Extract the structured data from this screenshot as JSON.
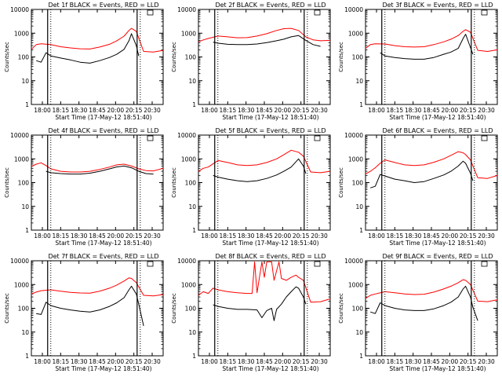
{
  "figure": {
    "panel_count": 9,
    "colors": {
      "black_series": "#000000",
      "red_series": "#ff0000",
      "marker_lines": "#000000"
    }
  },
  "chart_data": [
    {
      "type": "line",
      "title": "Det 1f BLACK = Events, RED = LLD",
      "xlabel": "Start Time (17-May-12 18:51:40)",
      "ylabel": "Counts/sec",
      "xlim": [
        17.8,
        20.5
      ],
      "ylim": [
        1,
        10000
      ],
      "yscale": "log",
      "xticks": [
        "18:00",
        "18:15",
        "18:30",
        "18:45",
        "20:00",
        "20:15",
        "20:30"
      ],
      "yticks": [
        "1",
        "10",
        "100",
        "1000",
        "10000"
      ],
      "vlines_time": [
        "18:08",
        "19:58"
      ],
      "series": [
        {
          "name": "Events",
          "color": "#000000",
          "x": [
            17.9,
            18.0,
            18.1,
            18.2,
            18.4,
            18.6,
            18.8,
            19.0,
            19.2,
            19.4,
            19.55,
            19.7,
            19.8,
            19.85,
            19.95,
            20.0
          ],
          "y": [
            70,
            60,
            150,
            110,
            90,
            75,
            60,
            55,
            70,
            95,
            130,
            210,
            480,
            950,
            300,
            110
          ]
        },
        {
          "name": "LLD",
          "color": "#ff0000",
          "x": [
            17.8,
            17.9,
            18.0,
            18.2,
            18.4,
            18.6,
            18.8,
            19.0,
            19.2,
            19.4,
            19.55,
            19.7,
            19.8,
            19.85,
            19.95,
            20.1,
            20.3,
            20.5
          ],
          "y": [
            210,
            330,
            360,
            330,
            270,
            240,
            220,
            215,
            260,
            340,
            480,
            750,
            1300,
            1600,
            1200,
            170,
            160,
            190
          ]
        }
      ]
    },
    {
      "type": "line",
      "title": "Det 2f BLACK = Events, RED = LLD",
      "xlabel": "Start Time (17-May-12 18:51:40)",
      "ylabel": "Counts/sec",
      "xlim": [
        17.8,
        20.5
      ],
      "ylim": [
        1,
        10000
      ],
      "yscale": "log",
      "xticks": [
        "18:00",
        "18:15",
        "18:30",
        "18:45",
        "20:00",
        "20:15",
        "20:30"
      ],
      "yticks": [
        "1",
        "10",
        "100",
        "1000",
        "10000"
      ],
      "vlines_time": [
        "18:08",
        "19:58"
      ],
      "series": [
        {
          "name": "Events",
          "color": "#000000",
          "x": [
            18.1,
            18.2,
            18.4,
            18.6,
            18.8,
            19.0,
            19.2,
            19.4,
            19.55,
            19.7,
            19.85,
            20.0,
            20.15,
            20.3
          ],
          "y": [
            420,
            380,
            340,
            330,
            330,
            350,
            400,
            480,
            560,
            700,
            800,
            500,
            330,
            280
          ]
        },
        {
          "name": "LLD",
          "color": "#ff0000",
          "x": [
            17.8,
            17.9,
            18.0,
            18.2,
            18.4,
            18.6,
            18.8,
            19.0,
            19.2,
            19.4,
            19.55,
            19.7,
            19.85,
            20.0,
            20.15,
            20.3,
            20.5
          ],
          "y": [
            430,
            520,
            600,
            760,
            700,
            640,
            650,
            760,
            950,
            1300,
            1550,
            1600,
            1300,
            700,
            520,
            480,
            500
          ]
        }
      ]
    },
    {
      "type": "line",
      "title": "Det 3f BLACK = Events, RED = LLD",
      "xlabel": "Start Time (17-May-12 18:51:40)",
      "ylabel": "Counts/sec",
      "xlim": [
        17.8,
        20.5
      ],
      "ylim": [
        1,
        10000
      ],
      "yscale": "log",
      "xticks": [
        "18:00",
        "18:15",
        "18:30",
        "18:45",
        "20:00",
        "20:15",
        "20:30"
      ],
      "yticks": [
        "1",
        "10",
        "100",
        "1000",
        "10000"
      ],
      "vlines_time": [
        "18:08",
        "19:58"
      ],
      "series": [
        {
          "name": "Events",
          "color": "#000000",
          "x": [
            18.1,
            18.2,
            18.4,
            18.6,
            18.8,
            19.0,
            19.2,
            19.4,
            19.55,
            19.7,
            19.8,
            19.85,
            19.95,
            20.0
          ],
          "y": [
            150,
            110,
            95,
            85,
            80,
            80,
            95,
            130,
            160,
            230,
            600,
            900,
            250,
            130
          ]
        },
        {
          "name": "LLD",
          "color": "#ff0000",
          "x": [
            17.8,
            17.9,
            18.0,
            18.2,
            18.4,
            18.6,
            18.8,
            19.0,
            19.2,
            19.4,
            19.55,
            19.7,
            19.8,
            19.85,
            19.95,
            20.1,
            20.3,
            20.5
          ],
          "y": [
            230,
            330,
            360,
            350,
            300,
            270,
            260,
            270,
            330,
            430,
            560,
            800,
            1200,
            1400,
            1100,
            190,
            170,
            200
          ]
        }
      ]
    },
    {
      "type": "line",
      "title": "Det 4f BLACK = Events, RED = LLD",
      "xlabel": "Start Time (17-May-12 18:51:40)",
      "ylabel": "Counts/sec",
      "xlim": [
        17.8,
        20.5
      ],
      "ylim": [
        1,
        10000
      ],
      "yscale": "log",
      "xticks": [
        "18:00",
        "18:15",
        "18:30",
        "18:45",
        "20:00",
        "20:15",
        "20:30"
      ],
      "yticks": [
        "1",
        "10",
        "100",
        "1000",
        "10000"
      ],
      "vlines_time": [
        "18:08",
        "19:58"
      ],
      "series": [
        {
          "name": "Events",
          "color": "#000000",
          "x": [
            18.1,
            18.2,
            18.4,
            18.6,
            18.8,
            19.0,
            19.2,
            19.4,
            19.55,
            19.7,
            19.85,
            20.0,
            20.15,
            20.3
          ],
          "y": [
            300,
            260,
            240,
            230,
            230,
            250,
            300,
            380,
            460,
            500,
            420,
            300,
            240,
            230
          ]
        },
        {
          "name": "LLD",
          "color": "#ff0000",
          "x": [
            17.8,
            17.9,
            18.0,
            18.1,
            18.2,
            18.4,
            18.6,
            18.8,
            19.0,
            19.2,
            19.4,
            19.55,
            19.7,
            19.85,
            20.0,
            20.15,
            20.3,
            20.5
          ],
          "y": [
            480,
            600,
            680,
            520,
            380,
            300,
            280,
            280,
            300,
            360,
            450,
            560,
            600,
            500,
            380,
            320,
            310,
            400
          ]
        }
      ]
    },
    {
      "type": "line",
      "title": "Det 5f BLACK = Events, RED = LLD",
      "xlabel": "Start Time (17-May-12 18:51:40)",
      "ylabel": "Counts/sec",
      "xlim": [
        17.8,
        20.5
      ],
      "ylim": [
        1,
        10000
      ],
      "yscale": "log",
      "xticks": [
        "18:00",
        "18:15",
        "18:30",
        "18:45",
        "20:00",
        "20:15",
        "20:30"
      ],
      "yticks": [
        "1",
        "10",
        "100",
        "1000",
        "10000"
      ],
      "vlines_time": [
        "18:08",
        "19:58"
      ],
      "series": [
        {
          "name": "Events",
          "color": "#000000",
          "x": [
            18.1,
            18.2,
            18.4,
            18.6,
            18.8,
            19.0,
            19.2,
            19.4,
            19.55,
            19.7,
            19.85,
            19.95,
            20.0
          ],
          "y": [
            200,
            170,
            140,
            120,
            110,
            120,
            150,
            210,
            300,
            450,
            1000,
            500,
            240
          ]
        },
        {
          "name": "LLD",
          "color": "#ff0000",
          "x": [
            17.8,
            17.9,
            18.0,
            18.2,
            18.4,
            18.6,
            18.8,
            19.0,
            19.2,
            19.4,
            19.55,
            19.7,
            19.85,
            19.95,
            20.1,
            20.3,
            20.5
          ],
          "y": [
            300,
            400,
            450,
            850,
            700,
            560,
            520,
            560,
            700,
            1000,
            1500,
            2300,
            1900,
            1300,
            280,
            260,
            300
          ]
        }
      ]
    },
    {
      "type": "line",
      "title": "Det 6f BLACK = Events, RED = LLD",
      "xlabel": "Start Time (17-May-12 18:51:40)",
      "ylabel": "Counts/sec",
      "xlim": [
        17.8,
        20.5
      ],
      "ylim": [
        1,
        10000
      ],
      "yscale": "log",
      "xticks": [
        "18:00",
        "18:15",
        "18:30",
        "18:45",
        "20:00",
        "20:15",
        "20:30"
      ],
      "yticks": [
        "1",
        "10",
        "100",
        "1000",
        "10000"
      ],
      "vlines_time": [
        "18:08",
        "19:58"
      ],
      "series": [
        {
          "name": "Events",
          "color": "#000000",
          "x": [
            17.9,
            18.0,
            18.1,
            18.2,
            18.4,
            18.6,
            18.8,
            19.0,
            19.2,
            19.4,
            19.55,
            19.7,
            19.8,
            19.85,
            19.95,
            20.0
          ],
          "y": [
            60,
            70,
            220,
            190,
            140,
            120,
            100,
            110,
            150,
            210,
            300,
            500,
            800,
            650,
            250,
            120
          ]
        },
        {
          "name": "LLD",
          "color": "#ff0000",
          "x": [
            17.8,
            17.9,
            18.0,
            18.1,
            18.2,
            18.4,
            18.6,
            18.8,
            19.0,
            19.2,
            19.4,
            19.55,
            19.7,
            19.8,
            19.85,
            19.95,
            20.1,
            20.3,
            20.5
          ],
          "y": [
            230,
            300,
            420,
            650,
            900,
            700,
            560,
            520,
            560,
            720,
            1000,
            1400,
            2000,
            1800,
            1500,
            900,
            160,
            150,
            200
          ]
        }
      ]
    },
    {
      "type": "line",
      "title": "Det 7f BLACK = Events, RED = LLD",
      "xlabel": "Start Time (17-May-12 18:51:40)",
      "ylabel": "Counts/sec",
      "xlim": [
        17.8,
        20.5
      ],
      "ylim": [
        1,
        10000
      ],
      "yscale": "log",
      "xticks": [
        "18:00",
        "18:15",
        "18:30",
        "18:45",
        "20:00",
        "20:15",
        "20:30"
      ],
      "yticks": [
        "1",
        "10",
        "100",
        "1000",
        "10000"
      ],
      "vlines_time": [
        "18:08",
        "19:58"
      ],
      "series": [
        {
          "name": "Events",
          "color": "#000000",
          "x": [
            17.9,
            18.0,
            18.1,
            18.2,
            18.4,
            18.6,
            18.8,
            19.0,
            19.2,
            19.4,
            19.55,
            19.7,
            19.8,
            19.85,
            19.95,
            20.0,
            20.1
          ],
          "y": [
            60,
            55,
            180,
            130,
            100,
            85,
            75,
            70,
            85,
            120,
            170,
            280,
            600,
            850,
            400,
            150,
            18
          ]
        },
        {
          "name": "LLD",
          "color": "#ff0000",
          "x": [
            17.8,
            17.9,
            18.0,
            18.2,
            18.4,
            18.6,
            18.8,
            19.0,
            19.2,
            19.4,
            19.55,
            19.7,
            19.8,
            19.85,
            19.95,
            20.1,
            20.3,
            20.5
          ],
          "y": [
            400,
            480,
            550,
            600,
            520,
            470,
            440,
            430,
            520,
            700,
            950,
            1400,
            1900,
            1800,
            1200,
            350,
            330,
            380
          ]
        }
      ]
    },
    {
      "type": "line",
      "title": "Det 8f BLACK = Events, RED = LLD",
      "xlabel": "Start Time (17-May-12 18:51:40)",
      "ylabel": "Counts/sec",
      "xlim": [
        17.8,
        20.5
      ],
      "ylim": [
        1,
        10000
      ],
      "yscale": "log",
      "xticks": [
        "18:00",
        "18:15",
        "18:30",
        "18:45",
        "20:00",
        "20:15",
        "20:30"
      ],
      "yticks": [
        "1",
        "10",
        "100",
        "1000",
        "10000"
      ],
      "vlines_time": [
        "18:08",
        "19:58"
      ],
      "series": [
        {
          "name": "Events",
          "color": "#000000",
          "x": [
            18.1,
            18.2,
            18.4,
            18.6,
            18.8,
            19.0,
            19.1,
            19.2,
            19.3,
            19.35,
            19.4,
            19.5,
            19.6,
            19.7,
            19.8,
            19.85,
            19.95,
            20.0
          ],
          "y": [
            140,
            120,
            100,
            90,
            90,
            85,
            40,
            80,
            100,
            30,
            90,
            150,
            300,
            500,
            800,
            700,
            300,
            150
          ]
        },
        {
          "name": "LLD",
          "color": "#ff0000",
          "x": [
            17.8,
            17.9,
            18.0,
            18.1,
            18.2,
            18.4,
            18.6,
            18.8,
            18.9,
            18.95,
            19.0,
            19.1,
            19.15,
            19.2,
            19.3,
            19.35,
            19.45,
            19.5,
            19.6,
            19.7,
            19.8,
            19.85,
            19.95,
            20.1,
            20.3,
            20.5
          ],
          "y": [
            350,
            500,
            420,
            700,
            600,
            500,
            450,
            420,
            420,
            9000,
            450,
            9000,
            2000,
            9000,
            9000,
            1500,
            9000,
            1800,
            1500,
            2000,
            2500,
            2000,
            1500,
            180,
            190,
            250
          ]
        }
      ]
    },
    {
      "type": "line",
      "title": "Det 9f BLACK = Events, RED = LLD",
      "xlabel": "Start Time (17-May-12 18:51:40)",
      "ylabel": "Counts/sec",
      "xlim": [
        17.8,
        20.5
      ],
      "ylim": [
        1,
        10000
      ],
      "yscale": "log",
      "xticks": [
        "18:00",
        "18:15",
        "18:30",
        "18:45",
        "20:00",
        "20:15",
        "20:30"
      ],
      "yticks": [
        "1",
        "10",
        "100",
        "1000",
        "10000"
      ],
      "vlines_time": [
        "18:08",
        "19:58"
      ],
      "series": [
        {
          "name": "Events",
          "color": "#000000",
          "x": [
            17.9,
            18.0,
            18.1,
            18.2,
            18.4,
            18.6,
            18.8,
            19.0,
            19.2,
            19.4,
            19.55,
            19.7,
            19.8,
            19.85,
            19.95,
            20.0,
            20.1
          ],
          "y": [
            70,
            60,
            170,
            130,
            100,
            85,
            80,
            80,
            95,
            130,
            180,
            300,
            650,
            850,
            300,
            110,
            30
          ]
        },
        {
          "name": "LLD",
          "color": "#ff0000",
          "x": [
            17.8,
            17.9,
            18.0,
            18.2,
            18.4,
            18.6,
            18.8,
            19.0,
            19.2,
            19.4,
            19.55,
            19.7,
            19.8,
            19.85,
            19.95,
            20.1,
            20.3,
            20.5
          ],
          "y": [
            260,
            350,
            400,
            500,
            450,
            400,
            380,
            390,
            480,
            650,
            850,
            1200,
            1600,
            1500,
            1000,
            200,
            190,
            230
          ]
        }
      ]
    }
  ]
}
